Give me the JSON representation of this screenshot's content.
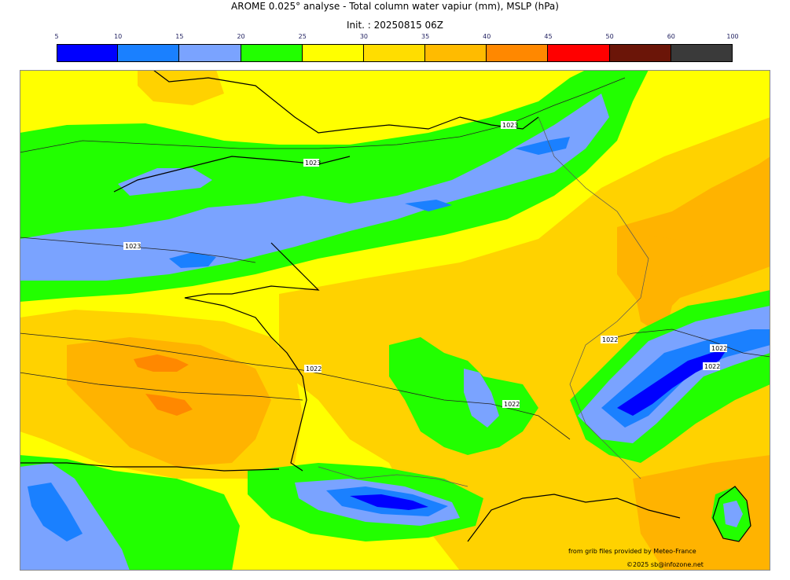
{
  "header": {
    "title": "AROME 0.025° analyse - Total column water vapiur (mm), MSLP (hPa)",
    "init": "Init. : 20250815 06Z"
  },
  "colorbar": {
    "ticks": [
      "5",
      "10",
      "15",
      "20",
      "25",
      "30",
      "35",
      "40",
      "45",
      "50",
      "60",
      "100"
    ],
    "colors": [
      "#0000ff",
      "#1a80ff",
      "#7aa3ff",
      "#22ff00",
      "#ffff00",
      "#ffdd00",
      "#ffbb00",
      "#ff8800",
      "#ff0000",
      "#6b1508",
      "#3a3a3a"
    ]
  },
  "map": {
    "isobar_labels": [
      "1023",
      "1023",
      "1023",
      "1022",
      "1022",
      "1022",
      "1022",
      "1022"
    ]
  },
  "credits": {
    "source": "from grib files provided by Meteo-France",
    "copyright": "©2025 sb@infozone.net"
  }
}
